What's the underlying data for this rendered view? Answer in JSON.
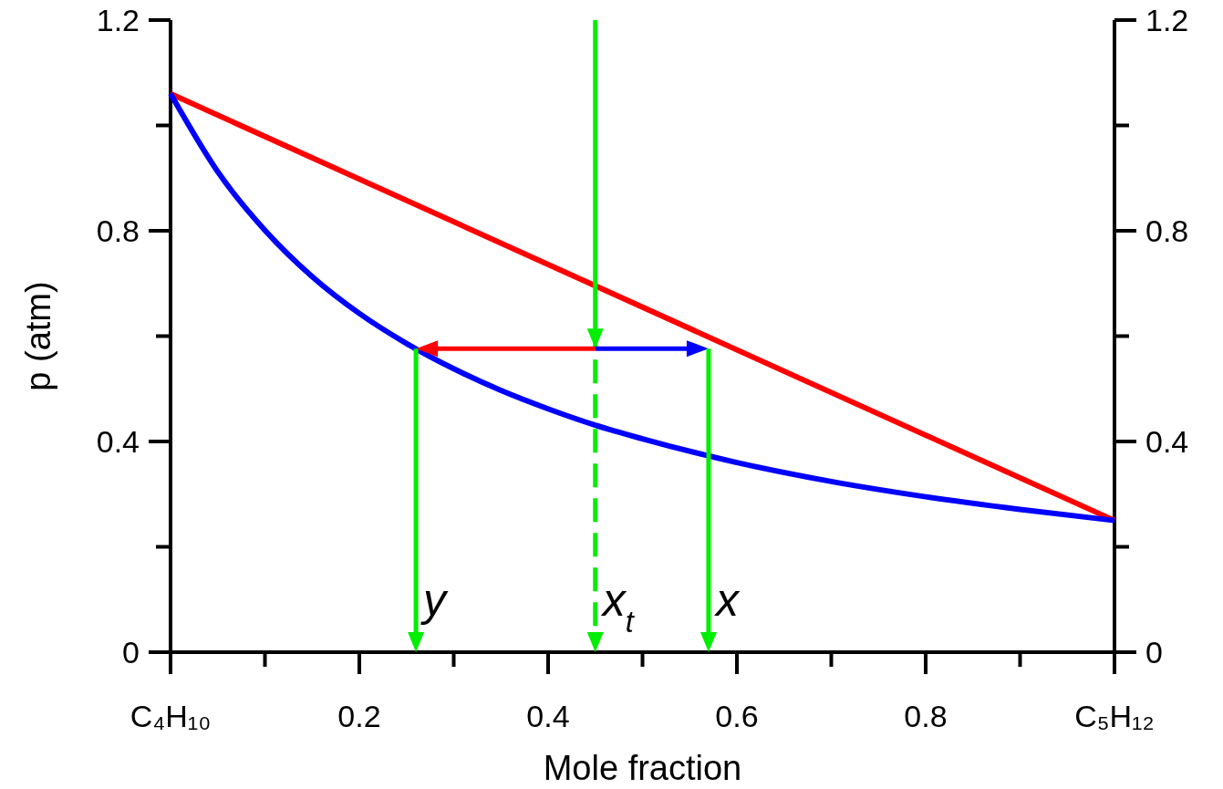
{
  "chart_data": {
    "type": "line",
    "xlabel": "Mole fraction",
    "ylabel": "p (atm)",
    "xlim": [
      0,
      1
    ],
    "xticks": [
      {
        "value": 0,
        "label": "C₄H₁₀"
      },
      {
        "value": 0.1,
        "label": null
      },
      0.2,
      {
        "value": 0.3,
        "label": null
      },
      0.4,
      {
        "value": 0.5,
        "label": null
      },
      0.6,
      {
        "value": 0.7,
        "label": null
      },
      0.8,
      {
        "value": 0.9,
        "label": null
      },
      {
        "value": 1,
        "label": "C₅H₁₂"
      }
    ],
    "ylim": [
      0,
      1.2
    ],
    "yticks": [
      0,
      {
        "value": 0.2,
        "label": null
      },
      0.4,
      {
        "value": 0.6,
        "label": null
      },
      0.8,
      {
        "value": 1.0,
        "label": null
      },
      1.2
    ],
    "y2lim": [
      0,
      1.2
    ],
    "y2ticks": [
      0,
      {
        "value": 0.2,
        "label": null
      },
      0.4,
      {
        "value": 0.6,
        "label": null
      },
      0.8,
      {
        "value": 1.0,
        "label": null
      },
      1.2
    ],
    "grid": false,
    "line_style": "solid",
    "series": [
      {
        "color": "#ff0000",
        "x": [
          0,
          1
        ],
        "values": [
          1.06,
          0.25
        ]
      },
      {
        "color": "#0000ff",
        "x": [
          0,
          0.05,
          0.1,
          0.15,
          0.2,
          0.25,
          0.3,
          0.35,
          0.4,
          0.45,
          0.5,
          0.6,
          0.7,
          0.8,
          0.9,
          1
        ],
        "values": [
          1.06,
          0.912,
          0.801,
          0.713,
          0.643,
          0.586,
          0.538,
          0.497,
          0.462,
          0.431,
          0.405,
          0.36,
          0.324,
          0.295,
          0.271,
          0.25
        ]
      }
    ],
    "ref_lines": [
      {
        "axis": "x",
        "value": 0.26,
        "label": "y",
        "color": "#00ee00",
        "line_style": "solid"
      },
      {
        "axis": "x",
        "value": 0.45,
        "label": "x$_{t}$",
        "color": "#00ee00",
        "line_style": "dashed"
      },
      {
        "axis": "x",
        "value": 0.57,
        "label": "x",
        "color": "#00ee00",
        "line_style": "solid"
      }
    ]
  }
}
